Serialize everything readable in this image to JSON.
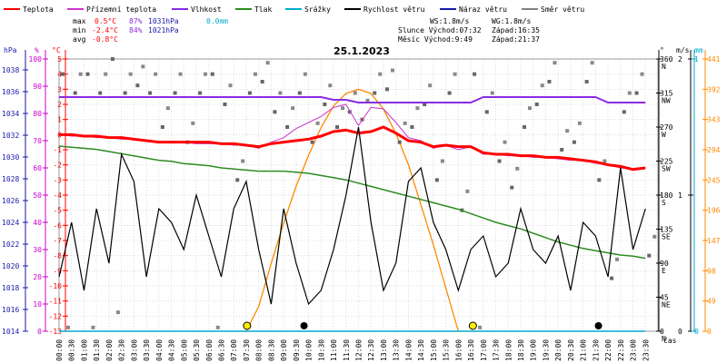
{
  "legend": [
    {
      "label": "Teplota",
      "color": "#ff0000"
    },
    {
      "label": "Přízemní teplota",
      "color": "#cc33cc"
    },
    {
      "label": "Vlhkost",
      "color": "#8a2be2"
    },
    {
      "label": "Tlak",
      "color": "#2e8b22"
    },
    {
      "label": "Srážky",
      "color": "#00aacc"
    },
    {
      "label": "Rychlost větru",
      "color": "#000000"
    },
    {
      "label": "Náraz větru",
      "color": "#1a1aaa"
    },
    {
      "label": "Směr větru",
      "color": "#808080"
    }
  ],
  "stats": {
    "max_label": "max",
    "max_temp": "0.5°C",
    "max_hum": "87%",
    "max_press": "1031hPa",
    "max_rain": "0.0mm",
    "min_label": "min",
    "min_temp": "-2.4°C",
    "min_hum": "84%",
    "min_press": "1021hPa",
    "avg_label": "avg",
    "avg_temp": "-0.8°C"
  },
  "wind_info": {
    "ws": "WS:1.8m/s",
    "wg": "WG:1.8m/s",
    "sunrise": "Slunce Východ:07:32",
    "sunset": "Západ:16:35",
    "moonrise": "Měsíc  Východ:9:49",
    "moonset": "Západ:21:37"
  },
  "axis_units": {
    "hpa": "hPa",
    "pct": "%",
    "degc": "°C",
    "deg": "°",
    "ms": "m/s",
    "mm": "mm",
    "cas": "čas"
  },
  "chart_data": {
    "type": "line",
    "title": "25.1.2023",
    "x": [
      "00:00",
      "00:30",
      "01:00",
      "01:30",
      "02:00",
      "02:30",
      "03:00",
      "03:30",
      "04:00",
      "04:30",
      "05:00",
      "05:30",
      "06:00",
      "06:30",
      "07:00",
      "07:30",
      "08:00",
      "08:30",
      "09:00",
      "09:30",
      "10:00",
      "10:30",
      "11:00",
      "11:30",
      "12:00",
      "12:30",
      "13:00",
      "13:30",
      "14:00",
      "14:30",
      "15:00",
      "15:30",
      "16:00",
      "16:30",
      "17:00",
      "17:30",
      "18:00",
      "18:30",
      "19:00",
      "19:30",
      "20:00",
      "20:30",
      "21:00",
      "21:30",
      "22:00",
      "22:30",
      "23:00",
      "23:30"
    ],
    "axes": {
      "pressure_hpa": {
        "ylim": [
          1014,
          1039
        ],
        "ticks": [
          1014,
          1016,
          1018,
          1020,
          1022,
          1024,
          1026,
          1028,
          1030,
          1032,
          1034,
          1036,
          1038
        ]
      },
      "humidity_pct": {
        "ylim": [
          0,
          100
        ],
        "ticks": [
          0,
          10,
          20,
          30,
          40,
          50,
          60,
          70,
          80,
          90,
          100
        ]
      },
      "temperature_c": {
        "ylim": [
          -13,
          5
        ],
        "ticks": [
          -13,
          -12,
          -11,
          -10,
          -9,
          -8,
          -7,
          -6,
          -5,
          -4,
          -3,
          -2,
          -1,
          0,
          1,
          2,
          3,
          4,
          5
        ]
      },
      "wind_dir_deg": {
        "ylim": [
          0,
          360
        ],
        "ticks": [
          0,
          45,
          90,
          135,
          180,
          225,
          270,
          315,
          360
        ],
        "labels": [
          "N",
          "NE",
          "E",
          "SE",
          "S",
          "SW",
          "W",
          "NW",
          "N"
        ]
      },
      "wind_speed_ms": {
        "ylim": [
          0,
          2
        ],
        "ticks": [
          0,
          1,
          2
        ]
      },
      "rain_mm": {
        "ylim": [
          0,
          1
        ],
        "ticks": [
          0,
          1
        ]
      },
      "rain_scale_orange": {
        "ylim": [
          0,
          441
        ],
        "ticks": [
          0,
          49,
          98,
          147,
          196,
          245,
          294,
          343,
          392,
          441
        ]
      }
    },
    "series": [
      {
        "name": "Teplota",
        "axis": "temperature_c",
        "color": "#ff0000",
        "values": [
          0.0,
          0.0,
          -0.1,
          -0.1,
          -0.2,
          -0.2,
          -0.3,
          -0.4,
          -0.5,
          -0.5,
          -0.5,
          -0.5,
          -0.5,
          -0.6,
          -0.6,
          -0.7,
          -0.8,
          -0.6,
          -0.5,
          -0.4,
          -0.3,
          -0.1,
          0.2,
          0.3,
          0.1,
          0.2,
          0.5,
          0.1,
          -0.4,
          -0.5,
          -0.8,
          -0.7,
          -0.8,
          -0.8,
          -1.2,
          -1.3,
          -1.3,
          -1.4,
          -1.4,
          -1.5,
          -1.5,
          -1.6,
          -1.7,
          -1.8,
          -2.0,
          -2.1,
          -2.3,
          -2.2
        ]
      },
      {
        "name": "Přízemní teplota",
        "axis": "temperature_c",
        "color": "#cc33cc",
        "values": [
          0.0,
          -0.1,
          -0.1,
          -0.2,
          -0.2,
          -0.3,
          -0.3,
          -0.4,
          -0.5,
          -0.5,
          -0.5,
          -0.6,
          -0.6,
          -0.6,
          -0.7,
          -0.7,
          -0.9,
          -0.5,
          -0.2,
          0.4,
          0.8,
          1.2,
          1.8,
          2.0,
          0.6,
          1.8,
          1.7,
          0.8,
          -0.2,
          -0.4,
          -0.9,
          -0.7,
          -1.0,
          -0.8,
          -1.3,
          -1.3,
          -1.4,
          -1.4,
          -1.5,
          -1.5,
          -1.6,
          -1.7,
          -1.7,
          -1.9,
          -2.0,
          -2.2,
          -2.3,
          -2.2
        ]
      },
      {
        "name": "Vlhkost",
        "axis": "humidity_pct",
        "color": "#8a2be2",
        "values": [
          86,
          86,
          86,
          86,
          86,
          86,
          86,
          86,
          86,
          86,
          86,
          86,
          86,
          86,
          86,
          86,
          86,
          86,
          86,
          86,
          86,
          86,
          85,
          85,
          84,
          84,
          84,
          84,
          84,
          84,
          84,
          84,
          84,
          84,
          86,
          86,
          86,
          86,
          86,
          86,
          86,
          86,
          86,
          86,
          84,
          84,
          84,
          84
        ]
      },
      {
        "name": "Tlak",
        "axis": "pressure_hpa",
        "color": "#2e8b22",
        "values": [
          1031.0,
          1030.9,
          1030.8,
          1030.7,
          1030.5,
          1030.3,
          1030.1,
          1029.9,
          1029.7,
          1029.6,
          1029.4,
          1029.3,
          1029.2,
          1029.0,
          1028.9,
          1028.8,
          1028.7,
          1028.7,
          1028.7,
          1028.6,
          1028.5,
          1028.3,
          1028.1,
          1027.9,
          1027.6,
          1027.3,
          1027.0,
          1026.7,
          1026.4,
          1026.1,
          1025.8,
          1025.5,
          1025.2,
          1024.8,
          1024.4,
          1024.0,
          1023.7,
          1023.4,
          1023.0,
          1022.6,
          1022.2,
          1021.9,
          1021.6,
          1021.4,
          1021.2,
          1021.0,
          1020.9,
          1020.7
        ]
      },
      {
        "name": "Srážky",
        "axis": "rain_mm",
        "color": "#00aacc",
        "values": [
          0,
          0,
          0,
          0,
          0,
          0,
          0,
          0,
          0,
          0,
          0,
          0,
          0,
          0,
          0,
          0,
          0,
          0,
          0,
          0,
          0,
          0,
          0,
          0,
          0,
          0,
          0,
          0,
          0,
          0,
          0,
          0,
          0,
          0,
          0,
          0,
          0,
          0,
          0,
          0,
          0,
          0,
          0,
          0,
          0,
          0,
          0,
          0
        ]
      },
      {
        "name": "Rychlost větru",
        "axis": "wind_speed_ms",
        "color": "#000000",
        "values": [
          0.4,
          0.8,
          0.3,
          0.9,
          0.5,
          1.3,
          1.1,
          0.4,
          0.9,
          0.8,
          0.6,
          1.0,
          0.7,
          0.4,
          0.9,
          1.1,
          0.6,
          0.2,
          0.9,
          0.5,
          0.2,
          0.3,
          0.6,
          1.0,
          1.5,
          0.8,
          0.3,
          0.5,
          1.1,
          1.2,
          0.8,
          0.6,
          0.3,
          0.6,
          0.7,
          0.4,
          0.5,
          0.9,
          0.6,
          0.5,
          0.7,
          0.3,
          0.8,
          0.7,
          0.4,
          1.2,
          0.6,
          0.9
        ]
      },
      {
        "name": "Směr větru",
        "axis": "wind_dir_deg",
        "color": "#666666",
        "values": [
          340,
          315,
          340,
          315,
          360,
          315,
          325,
          315,
          270,
          315,
          250,
          315,
          340,
          300,
          200,
          315,
          330,
          290,
          270,
          315,
          250,
          300,
          270,
          290,
          280,
          315,
          320,
          250,
          270,
          300,
          200,
          315,
          160,
          340,
          290,
          225,
          190,
          270,
          300,
          330,
          240,
          250,
          330,
          200,
          70,
          290,
          315,
          100
        ]
      },
      {
        "name": "Náraz větru",
        "axis": "wind_dir_deg",
        "color": "#1a1aaa",
        "values": [
          0,
          0,
          0,
          0,
          0,
          0,
          0,
          0,
          0,
          0,
          0,
          0,
          0,
          0,
          0,
          0,
          0,
          0,
          0,
          0,
          0,
          0,
          0,
          0,
          0,
          0,
          0,
          0,
          0,
          0,
          0,
          0,
          0,
          0,
          0,
          0,
          0,
          0,
          0,
          0,
          0,
          0,
          0,
          0,
          0,
          0,
          0,
          0
        ]
      },
      {
        "name": "Slunce",
        "axis": "rain_scale_orange",
        "color": "#ff8800",
        "values": [
          0,
          0,
          0,
          0,
          0,
          0,
          0,
          0,
          0,
          0,
          0,
          0,
          0,
          0,
          0,
          0,
          40,
          110,
          175,
          235,
          285,
          330,
          365,
          385,
          392,
          385,
          360,
          320,
          270,
          205,
          140,
          70,
          0,
          0,
          0,
          0,
          0,
          0,
          0,
          0,
          0,
          0,
          0,
          0,
          0,
          0,
          0,
          0
        ]
      }
    ],
    "sun_markers": [
      "07:32",
      "16:35"
    ],
    "moon_markers": [
      "09:49",
      "21:37"
    ]
  }
}
